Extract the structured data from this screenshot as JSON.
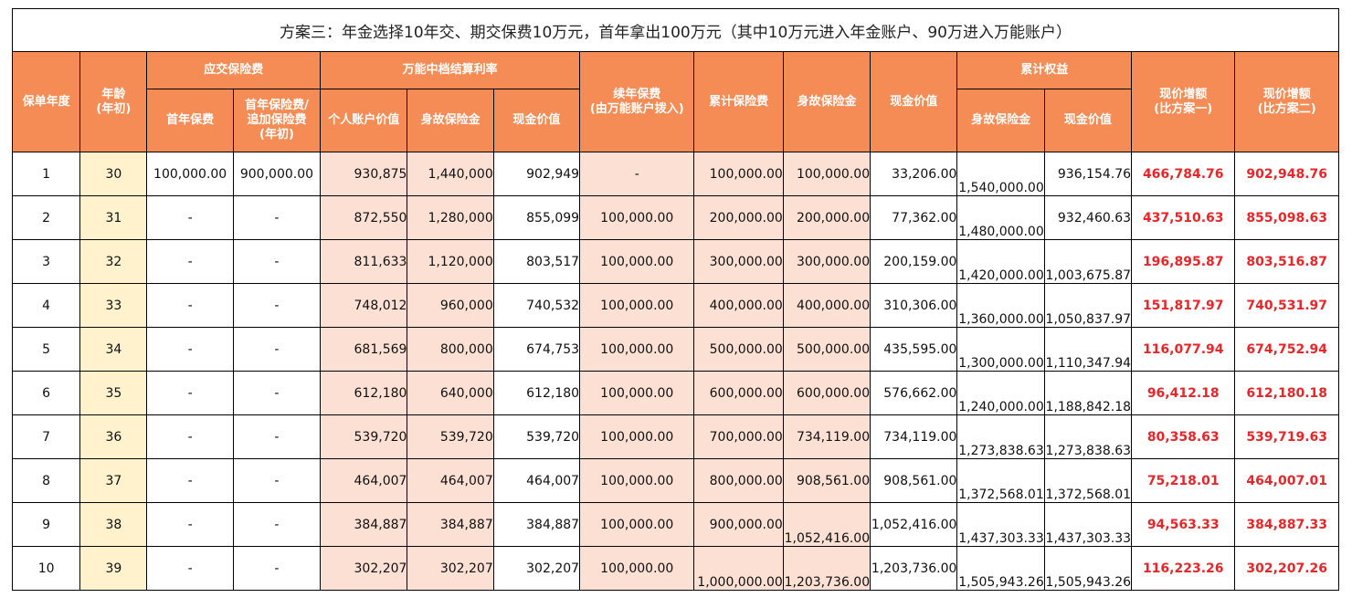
{
  "title": "方案三：年金选择10年交、期交保费10万元，首年拿出100万元（其中10万元进入年金账户、90万进入万能账户）",
  "headers": {
    "policy_year": "保单年度",
    "age_line1": "年龄",
    "age_line2": "(年初)",
    "premium_due": "应交保险费",
    "first_year_premium": "首年保费",
    "additional_line1": "首年保险费/",
    "additional_line2": "追加保险费",
    "additional_line3": "(年初)",
    "universal_mid_rate": "万能中档结算利率",
    "personal_account_value": "个人账户价值",
    "death_benefit": "身故保险金",
    "cash_value": "现金价值",
    "renewal_line1": "续年保费",
    "renewal_line2": "(由万能账户拨入)",
    "cumulative_premium": "累计保险费",
    "death_benefit_annuity": "身故保险金",
    "cash_value_annuity": "现金价值",
    "cumulative_rights": "累计权益",
    "cum_death_benefit": "身故保险金",
    "cum_cash_value": "现金价值",
    "increase_vs_1_line1": "现价增额",
    "increase_vs_1_line2": "(比方案一)",
    "increase_vs_2_line1": "现价增额",
    "increase_vs_2_line2": "(比方案二)"
  },
  "rows": [
    {
      "year": "1",
      "age": "30",
      "first_premium": "100,000.00",
      "additional": "900,000.00",
      "account_value": "930,875",
      "u_death": "1,440,000",
      "u_cash": "902,949",
      "renewal": "-",
      "cum_premium": "100,000.00",
      "death": "100,000.00",
      "cash": "33,206.00",
      "cum_death": "1,540,000.00",
      "cum_cash": "936,154.76",
      "inc1": "466,784.76",
      "inc2": "902,948.76"
    },
    {
      "year": "2",
      "age": "31",
      "first_premium": "-",
      "additional": "-",
      "account_value": "872,550",
      "u_death": "1,280,000",
      "u_cash": "855,099",
      "renewal": "100,000.00",
      "cum_premium": "200,000.00",
      "death": "200,000.00",
      "cash": "77,362.00",
      "cum_death": "1,480,000.00",
      "cum_cash": "932,460.63",
      "inc1": "437,510.63",
      "inc2": "855,098.63"
    },
    {
      "year": "3",
      "age": "32",
      "first_premium": "-",
      "additional": "-",
      "account_value": "811,633",
      "u_death": "1,120,000",
      "u_cash": "803,517",
      "renewal": "100,000.00",
      "cum_premium": "300,000.00",
      "death": "300,000.00",
      "cash": "200,159.00",
      "cum_death": "1,420,000.00",
      "cum_cash": "1,003,675.87",
      "inc1": "196,895.87",
      "inc2": "803,516.87"
    },
    {
      "year": "4",
      "age": "33",
      "first_premium": "-",
      "additional": "-",
      "account_value": "748,012",
      "u_death": "960,000",
      "u_cash": "740,532",
      "renewal": "100,000.00",
      "cum_premium": "400,000.00",
      "death": "400,000.00",
      "cash": "310,306.00",
      "cum_death": "1,360,000.00",
      "cum_cash": "1,050,837.97",
      "inc1": "151,817.97",
      "inc2": "740,531.97"
    },
    {
      "year": "5",
      "age": "34",
      "first_premium": "-",
      "additional": "-",
      "account_value": "681,569",
      "u_death": "800,000",
      "u_cash": "674,753",
      "renewal": "100,000.00",
      "cum_premium": "500,000.00",
      "death": "500,000.00",
      "cash": "435,595.00",
      "cum_death": "1,300,000.00",
      "cum_cash": "1,110,347.94",
      "inc1": "116,077.94",
      "inc2": "674,752.94"
    },
    {
      "year": "6",
      "age": "35",
      "first_premium": "-",
      "additional": "-",
      "account_value": "612,180",
      "u_death": "640,000",
      "u_cash": "612,180",
      "renewal": "100,000.00",
      "cum_premium": "600,000.00",
      "death": "600,000.00",
      "cash": "576,662.00",
      "cum_death": "1,240,000.00",
      "cum_cash": "1,188,842.18",
      "inc1": "96,412.18",
      "inc2": "612,180.18"
    },
    {
      "year": "7",
      "age": "36",
      "first_premium": "-",
      "additional": "-",
      "account_value": "539,720",
      "u_death": "539,720",
      "u_cash": "539,720",
      "renewal": "100,000.00",
      "cum_premium": "700,000.00",
      "death": "734,119.00",
      "cash": "734,119.00",
      "cum_death": "1,273,838.63",
      "cum_cash": "1,273,838.63",
      "inc1": "80,358.63",
      "inc2": "539,719.63"
    },
    {
      "year": "8",
      "age": "37",
      "first_premium": "-",
      "additional": "-",
      "account_value": "464,007",
      "u_death": "464,007",
      "u_cash": "464,007",
      "renewal": "100,000.00",
      "cum_premium": "800,000.00",
      "death": "908,561.00",
      "cash": "908,561.00",
      "cum_death": "1,372,568.01",
      "cum_cash": "1,372,568.01",
      "inc1": "75,218.01",
      "inc2": "464,007.01"
    },
    {
      "year": "9",
      "age": "38",
      "first_premium": "-",
      "additional": "-",
      "account_value": "384,887",
      "u_death": "384,887",
      "u_cash": "384,887",
      "renewal": "100,000.00",
      "cum_premium": "900,000.00",
      "death": "1,052,416.00",
      "cash": "1,052,416.00",
      "cum_death": "1,437,303.33",
      "cum_cash": "1,437,303.33",
      "inc1": "94,563.33",
      "inc2": "384,887.33"
    },
    {
      "year": "10",
      "age": "39",
      "first_premium": "-",
      "additional": "-",
      "account_value": "302,207",
      "u_death": "302,207",
      "u_cash": "302,207",
      "renewal": "100,000.00",
      "cum_premium": "1,000,000.00",
      "death": "1,203,736.00",
      "cash": "1,203,736.00",
      "cum_death": "1,505,943.26",
      "cum_cash": "1,505,943.26",
      "inc1": "116,223.26",
      "inc2": "302,207.26"
    }
  ],
  "colors": {
    "header_bg": "#f58c55",
    "header_text": "#ffffff",
    "age_column_bg": "#fff2cc",
    "universal_column_bg": "#fce0d4",
    "increase_text": "#e8262a"
  }
}
